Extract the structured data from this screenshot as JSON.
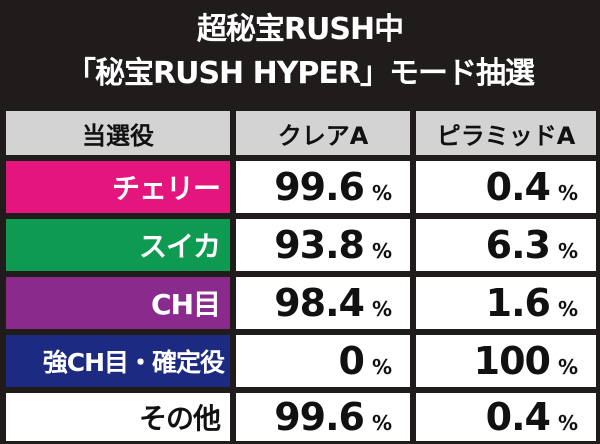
{
  "title": {
    "line1": "超秘宝RUSH中",
    "line2": "「秘宝RUSH HYPER」モード抽選"
  },
  "table": {
    "headers": [
      "当選役",
      "クレアA",
      "ピラミッドA"
    ],
    "unit": "%",
    "rows": [
      {
        "label": "チェリー",
        "color": "#e4157d",
        "a": "99.6",
        "b": "0.4"
      },
      {
        "label": "スイカ",
        "color": "#0f9a52",
        "a": "93.8",
        "b": "6.3"
      },
      {
        "label": "CH目",
        "color": "#8a2a8c",
        "a": "98.4",
        "b": "1.6"
      },
      {
        "label": "強CH目・確定役",
        "color": "#1d2a82",
        "a": "0",
        "b": "100"
      },
      {
        "label": "その他",
        "color": "#ffffff",
        "a": "99.6",
        "b": "0.4"
      }
    ]
  }
}
